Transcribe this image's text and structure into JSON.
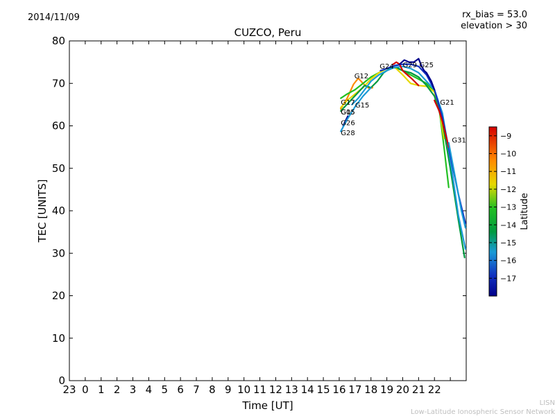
{
  "header": {
    "date": "2014/11/09",
    "rx_bias": "rx_bias = 53.0",
    "elevation": "elevation > 30"
  },
  "footer": {
    "line1": "LISN",
    "line2": "Low-Latitude Ionospheric Sensor Network"
  },
  "colors": {
    "red": "#d40000",
    "orange": "#ff8c00",
    "yellow": "#e6d800",
    "green": "#22c022",
    "darkgreen": "#009a40",
    "cyan": "#1a9ad6",
    "blue": "#1030c0",
    "navy": "#00008a"
  },
  "chart_data": {
    "type": "line",
    "title": "CUZCO, Peru",
    "xlabel": "Time [UT]",
    "ylabel": "TEC [UNITS]",
    "xlim": [
      -1,
      24
    ],
    "ylim": [
      0,
      80
    ],
    "x_tick_labels": [
      "23",
      "0",
      "1",
      "2",
      "3",
      "4",
      "5",
      "6",
      "7",
      "8",
      "9",
      "10",
      "11",
      "12",
      "13",
      "14",
      "15",
      "16",
      "17",
      "18",
      "19",
      "20",
      "21",
      "22"
    ],
    "y_ticks": [
      0,
      10,
      20,
      30,
      40,
      50,
      60,
      70,
      80
    ],
    "colorbar": {
      "label": "Latitude",
      "min": -18,
      "max": -8.5,
      "ticks": [
        -9,
        -10,
        -11,
        -12,
        -13,
        -14,
        -15,
        -16,
        -17
      ],
      "tick_labels": [
        "−9",
        "−10",
        "−11",
        "−12",
        "−13",
        "−14",
        "−15",
        "−16",
        "−17"
      ]
    },
    "series": [
      {
        "name": "G12",
        "color_key": "orange",
        "label_at": [
          16.95,
          71.2
        ],
        "x": [
          16.1,
          16.5,
          16.9,
          17.2,
          17.5,
          17.7,
          17.9,
          18.1
        ],
        "y": [
          64.0,
          66.5,
          69.8,
          71.2,
          70.0,
          69.3,
          68.8,
          69.0
        ]
      },
      {
        "name": "G17",
        "color_key": "green",
        "label_at": [
          16.1,
          65.0
        ],
        "x": [
          16.1,
          16.5,
          17.0,
          17.5,
          18.0,
          18.5,
          19.0,
          19.5,
          20.0,
          20.5,
          21.0,
          21.5,
          22.0,
          22.3,
          22.6,
          22.9
        ],
        "y": [
          66.5,
          67.5,
          68.5,
          70.0,
          71.5,
          72.5,
          73.5,
          73.8,
          73.0,
          72.0,
          71.0,
          70.0,
          68.0,
          64.0,
          55.0,
          45.5
        ]
      },
      {
        "name": "G15",
        "color_key": "yellow",
        "label_at": [
          16.1,
          62.7
        ],
        "x": [
          16.1,
          16.5,
          17.0,
          17.5,
          18.0,
          18.5,
          19.0,
          19.5,
          20.0,
          20.5,
          21.0,
          21.5,
          22.0,
          22.3,
          22.6
        ],
        "y": [
          64.3,
          66.0,
          67.5,
          69.0,
          71.0,
          72.5,
          73.5,
          73.8,
          72.0,
          70.0,
          69.5,
          69.3,
          68.0,
          64.0,
          57.0
        ]
      },
      {
        "name": "G05",
        "color_key": "darkgreen",
        "label_at": [
          16.1,
          62.7
        ],
        "x": [
          16.1,
          16.6,
          17.1,
          17.6,
          18.0,
          18.4,
          18.8,
          19.2,
          19.6,
          20.0,
          20.5,
          21.0,
          21.5,
          22.0,
          22.5,
          23.0,
          23.5,
          23.9
        ],
        "y": [
          63.5,
          65.5,
          67.5,
          69.5,
          69.0,
          70.5,
          72.5,
          73.5,
          73.8,
          73.0,
          72.5,
          71.5,
          69.5,
          67.0,
          61.0,
          50.0,
          38.0,
          29.0
        ]
      },
      {
        "name": "G15",
        "color_key": "cyan",
        "label_at": [
          17.0,
          64.3
        ],
        "x": [
          16.8,
          17.2,
          17.6,
          18.0,
          18.5,
          19.0,
          19.5,
          20.0,
          20.5,
          21.0,
          21.5,
          22.0,
          22.5,
          23.0,
          23.5,
          23.95
        ],
        "y": [
          65.0,
          66.5,
          68.5,
          70.5,
          72.0,
          73.0,
          73.8,
          74.0,
          73.5,
          72.5,
          70.5,
          68.5,
          63.0,
          52.0,
          39.0,
          31.0
        ]
      },
      {
        "name": "G26",
        "color_key": "navy",
        "label_at": [
          16.1,
          60.2
        ],
        "x": [
          16.25,
          16.4,
          16.55
        ],
        "y": [
          60.0,
          61.2,
          62.3
        ]
      },
      {
        "name": "G28",
        "color_key": "cyan",
        "label_at": [
          16.1,
          57.8
        ],
        "x": [
          16.1,
          16.5,
          17.0,
          17.5,
          18.0
        ],
        "y": [
          58.7,
          61.5,
          64.5,
          67.0,
          69.0
        ]
      },
      {
        "name": "G24",
        "color_key": "blue",
        "label_at": [
          18.55,
          73.5
        ],
        "x": [
          18.6,
          19.0,
          19.5,
          20.0,
          20.5,
          21.0,
          21.5,
          22.0,
          22.5,
          23.0,
          23.5,
          23.95
        ],
        "y": [
          73.0,
          73.5,
          74.2,
          74.5,
          74.5,
          74.0,
          72.0,
          68.5,
          62.0,
          53.0,
          44.0,
          37.0
        ]
      },
      {
        "name": "G29",
        "color_key": "red",
        "label_at": [
          20.0,
          73.8
        ],
        "x": [
          19.4,
          19.6,
          19.8,
          20.0,
          20.3,
          20.6,
          21.0
        ],
        "y": [
          74.5,
          75.0,
          74.5,
          73.0,
          72.0,
          71.0,
          69.5
        ]
      },
      {
        "name": "G25",
        "color_key": "navy",
        "label_at": [
          21.05,
          73.8
        ],
        "x": [
          19.8,
          20.1,
          20.4,
          20.7,
          21.0,
          21.2,
          21.35,
          21.5,
          21.8,
          22.0
        ],
        "y": [
          74.5,
          75.5,
          75.0,
          75.0,
          75.8,
          74.0,
          73.0,
          72.5,
          70.5,
          68.5
        ]
      },
      {
        "name": "G21",
        "color_key": "red",
        "label_at": [
          22.35,
          65.0
        ],
        "x": [
          22.0,
          22.3,
          22.5,
          22.7,
          22.9
        ],
        "y": [
          66.0,
          63.5,
          61.0,
          58.0,
          55.0
        ]
      },
      {
        "name": "G31",
        "color_key": "cyan",
        "label_at": [
          23.1,
          56.1
        ],
        "x": [
          22.9,
          23.1,
          23.3,
          23.5,
          23.7,
          23.95
        ],
        "y": [
          56.0,
          52.0,
          48.0,
          44.0,
          40.0,
          36.0
        ]
      }
    ]
  }
}
